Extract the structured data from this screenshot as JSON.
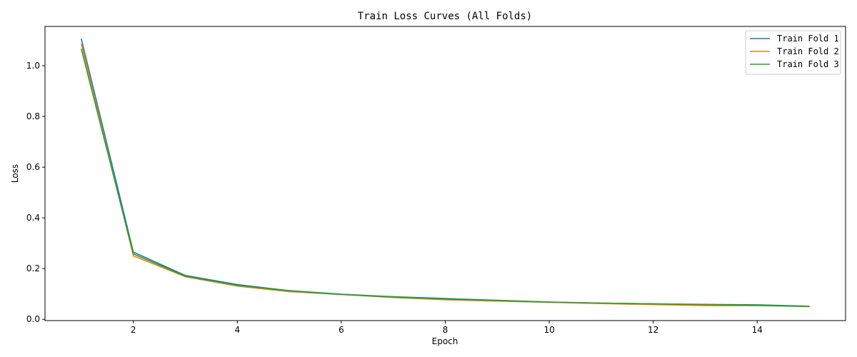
{
  "chart_data": {
    "type": "line",
    "title": "Train Loss Curves (All Folds)",
    "xlabel": "Epoch",
    "ylabel": "Loss",
    "x": [
      1,
      2,
      3,
      4,
      5,
      6,
      7,
      8,
      9,
      10,
      11,
      12,
      13,
      14,
      15
    ],
    "xlim": [
      0.3,
      15.7
    ],
    "ylim": [
      -0.005,
      1.155
    ],
    "xticks": [
      2,
      4,
      6,
      8,
      10,
      12,
      14
    ],
    "yticks": [
      0.0,
      0.2,
      0.4,
      0.6,
      0.8,
      1.0
    ],
    "grid": false,
    "legend_position": "top-right",
    "series": [
      {
        "name": "Train Fold 1",
        "color": "#1f77b4",
        "values": [
          1.105,
          0.265,
          0.173,
          0.137,
          0.113,
          0.099,
          0.089,
          0.082,
          0.075,
          0.068,
          0.064,
          0.061,
          0.059,
          0.057,
          0.052
        ]
      },
      {
        "name": "Train Fold 2",
        "color": "#ff7f0e",
        "values": [
          1.085,
          0.25,
          0.168,
          0.131,
          0.109,
          0.098,
          0.086,
          0.077,
          0.072,
          0.067,
          0.062,
          0.058,
          0.054,
          0.054,
          0.051
        ]
      },
      {
        "name": "Train Fold 3",
        "color": "#2ca02c",
        "values": [
          1.065,
          0.258,
          0.17,
          0.134,
          0.112,
          0.098,
          0.088,
          0.08,
          0.074,
          0.068,
          0.064,
          0.061,
          0.058,
          0.055,
          0.05
        ]
      }
    ]
  }
}
